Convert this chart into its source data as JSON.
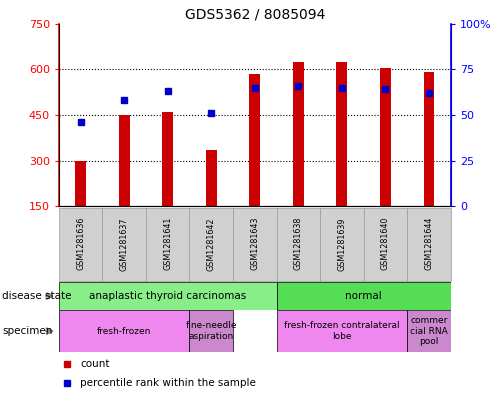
{
  "title": "GDS5362 / 8085094",
  "samples": [
    "GSM1281636",
    "GSM1281637",
    "GSM1281641",
    "GSM1281642",
    "GSM1281643",
    "GSM1281638",
    "GSM1281639",
    "GSM1281640",
    "GSM1281644"
  ],
  "counts": [
    300,
    450,
    460,
    335,
    585,
    625,
    625,
    605,
    590
  ],
  "percentile_ranks": [
    46,
    58,
    63,
    51,
    65,
    66,
    65,
    64,
    62
  ],
  "ylim_left": [
    150,
    750
  ],
  "ylim_right": [
    0,
    100
  ],
  "yticks_left": [
    150,
    300,
    450,
    600,
    750
  ],
  "ytick_labels_left": [
    "150",
    "300",
    "450",
    "600",
    "750"
  ],
  "yticks_right": [
    0,
    25,
    50,
    75,
    100
  ],
  "ytick_labels_right": [
    "0",
    "25",
    "50",
    "75",
    "100%"
  ],
  "bar_color": "#cc0000",
  "marker_color": "#0000cc",
  "bar_width": 0.25,
  "disease_state": [
    {
      "label": "anaplastic thyroid carcinomas",
      "start": 0,
      "end": 4,
      "color": "#88ee88"
    },
    {
      "label": "normal",
      "start": 5,
      "end": 8,
      "color": "#55dd55"
    }
  ],
  "specimen": [
    {
      "label": "fresh-frozen",
      "start": 0,
      "end": 2,
      "color": "#ee88ee"
    },
    {
      "label": "fine-needle\naspiration",
      "start": 3,
      "end": 3,
      "color": "#cc88cc"
    },
    {
      "label": "fresh-frozen contralateral\nlobe",
      "start": 5,
      "end": 7,
      "color": "#ee88ee"
    },
    {
      "label": "commer\ncial RNA\npool",
      "start": 8,
      "end": 8,
      "color": "#cc88cc"
    }
  ],
  "legend_count_label": "count",
  "legend_pct_label": "percentile rank within the sample",
  "disease_state_label": "disease state",
  "specimen_label": "specimen"
}
